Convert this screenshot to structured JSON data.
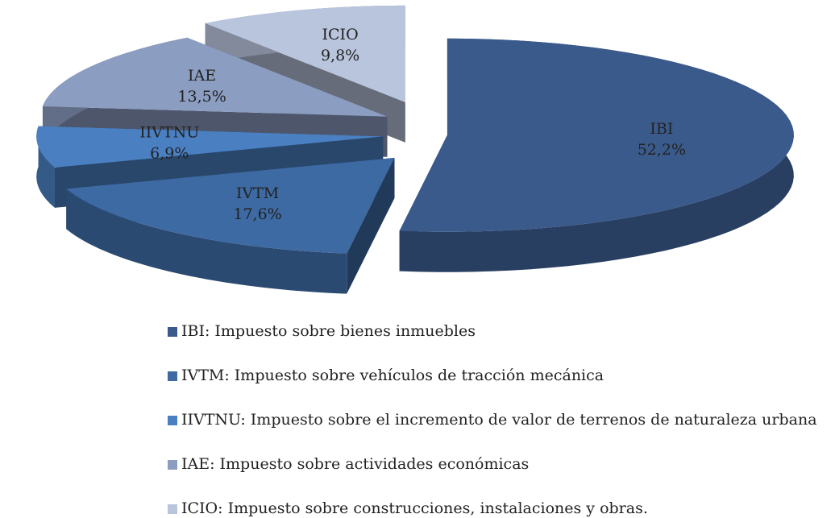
{
  "chart_data": {
    "type": "pie",
    "categories": [
      "IBI",
      "IVTM",
      "IIVTNU",
      "IAE",
      "ICIO"
    ],
    "values": [
      52.2,
      17.6,
      6.9,
      13.5,
      9.8
    ],
    "value_labels": [
      "52,2%",
      "17,6%",
      "6,9%",
      "13,5%",
      "9,8%"
    ],
    "legend": [
      "IBI: Impuesto sobre bienes inmuebles",
      "IVTM: Impuesto sobre vehículos de tracción mecánica",
      "IIVTNU: Impuesto sobre el incremento de valor de terrenos de naturaleza urbana",
      "IAE: Impuesto sobre actividades económicas",
      "ICIO: Impuesto sobre construcciones, instalaciones y obras."
    ],
    "colors": [
      "#3a5a8c",
      "#3d6aa3",
      "#4a80c2",
      "#8c9dc2",
      "#b9c5dd"
    ]
  }
}
